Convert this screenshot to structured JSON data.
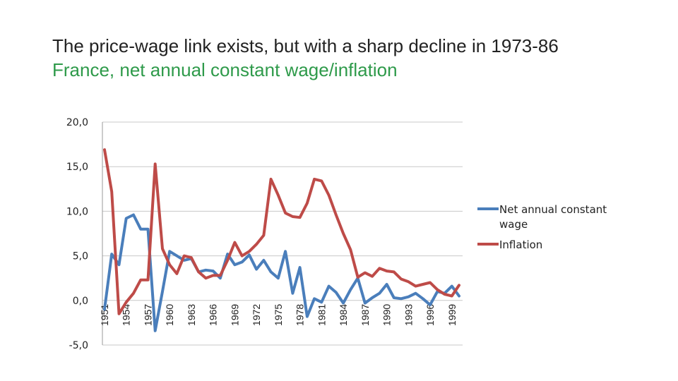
{
  "slide": {
    "title": "The price-wage link exists, but with a sharp decline in 1973-86",
    "subtitle": "France, net annual constant wage/inflation"
  },
  "chart_data": {
    "type": "line",
    "x": [
      1951,
      1952,
      1953,
      1954,
      1955,
      1956,
      1957,
      1958,
      1959,
      1960,
      1961,
      1962,
      1963,
      1964,
      1965,
      1966,
      1967,
      1968,
      1969,
      1970,
      1971,
      1972,
      1973,
      1974,
      1975,
      1976,
      1977,
      1978,
      1979,
      1980,
      1981,
      1982,
      1983,
      1984,
      1985,
      1986,
      1987,
      1988,
      1989,
      1990,
      1991,
      1992,
      1993,
      1994,
      1995,
      1996,
      1997,
      1998,
      1999,
      2000
    ],
    "x_tick_labels": [
      "1951",
      "1954",
      "1957",
      "1960",
      "1963",
      "1966",
      "1969",
      "1972",
      "1975",
      "1978",
      "1981",
      "1984",
      "1987",
      "1990",
      "1993",
      "1996",
      "1999"
    ],
    "ylim": [
      -5,
      20
    ],
    "y_tick_labels": [
      "-5,0",
      "0,0",
      "5,0",
      "10,0",
      "15,0",
      "20,0"
    ],
    "y_ticks": [
      -5,
      0,
      5,
      10,
      15,
      20
    ],
    "grid": true,
    "legend_position": "right",
    "series": [
      {
        "name": "Net annual constant wage",
        "color": "#4a7ebb",
        "values": [
          -1.0,
          5.2,
          4.0,
          9.2,
          9.6,
          8.0,
          8.0,
          -3.4,
          1.0,
          5.5,
          5.0,
          4.5,
          4.7,
          3.2,
          3.4,
          3.3,
          2.5,
          5.2,
          4.0,
          4.3,
          5.1,
          3.5,
          4.5,
          3.2,
          2.5,
          5.5,
          0.8,
          3.7,
          -1.8,
          0.2,
          -0.2,
          1.6,
          0.9,
          -0.3,
          1.2,
          2.5,
          -0.3,
          0.3,
          0.8,
          1.8,
          0.3,
          0.2,
          0.4,
          0.8,
          0.2,
          -0.5,
          1.0,
          0.8,
          1.6,
          0.5
        ]
      },
      {
        "name": "Inflation",
        "color": "#be4b48",
        "values": [
          16.9,
          12.2,
          -1.5,
          -0.2,
          0.8,
          2.3,
          2.3,
          15.3,
          5.8,
          4.0,
          3.0,
          5.0,
          4.8,
          3.2,
          2.5,
          2.8,
          2.8,
          4.5,
          6.5,
          5.0,
          5.5,
          6.3,
          7.3,
          13.6,
          11.8,
          9.8,
          9.4,
          9.3,
          10.9,
          13.6,
          13.4,
          11.8,
          9.6,
          7.5,
          5.7,
          2.6,
          3.1,
          2.7,
          3.6,
          3.3,
          3.2,
          2.4,
          2.1,
          1.6,
          1.8,
          2.0,
          1.2,
          0.7,
          0.5,
          1.7
        ]
      }
    ]
  }
}
